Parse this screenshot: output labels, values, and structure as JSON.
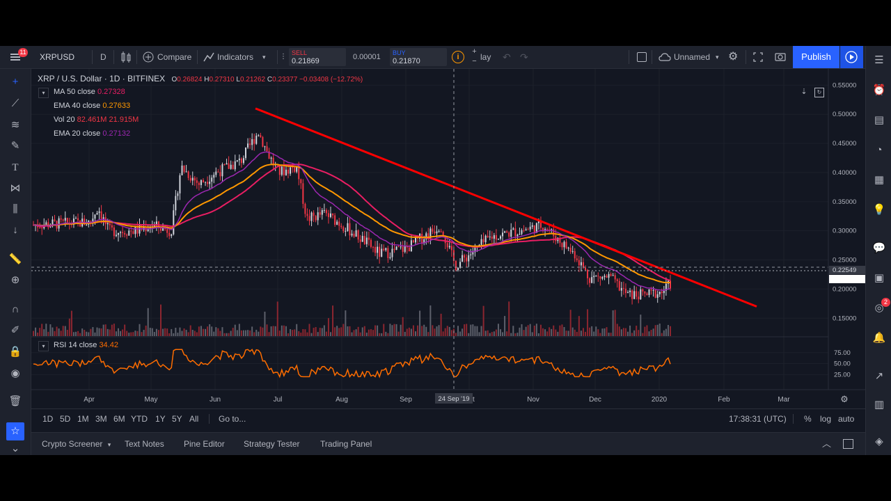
{
  "toolbar": {
    "notification_badge": "11",
    "symbol": "XRPUSD",
    "interval": "D",
    "compare_label": "Compare",
    "indicators_label": "Indicators",
    "sell_label": "SELL",
    "sell_price": "0.21869",
    "spread": "0.00001",
    "buy_label": "BUY",
    "buy_price": "0.21870",
    "replay_label": "lay",
    "layout_name": "Unnamed",
    "publish_label": "Publish"
  },
  "legend": {
    "title": "XRP / U.S. Dollar · 1D · BITFINEX",
    "o_label": "O",
    "o_value": "0.26824",
    "h_label": "H",
    "h_value": "0.27310",
    "l_label": "L",
    "l_value": "0.21262",
    "c_label": "C",
    "c_value": "0.23377 −0.03408 (−12.72%)",
    "indicators": [
      {
        "name": "MA 50 close",
        "value": "0.27328",
        "color": "#e91e63"
      },
      {
        "name": "EMA 40 close",
        "value": "0.27633",
        "color": "#ff9800"
      },
      {
        "name": "Vol 20",
        "value": "82.461M",
        "value2": "21.915M",
        "color": "#f23645"
      },
      {
        "name": "EMA 20 close",
        "value": "0.27132",
        "color": "#9c27b0"
      }
    ],
    "rsi_name": "RSI 14 close",
    "rsi_value": "34.42"
  },
  "colors": {
    "background": "#131722",
    "up": "#d1d4dc",
    "down": "#f23645",
    "trendline": "#ff0000",
    "rsi": "#ff6d00",
    "accent": "#2962ff"
  },
  "price_axis": {
    "ticks": [
      "0.55000",
      "0.50000",
      "0.45000",
      "0.40000",
      "0.35000",
      "0.30000",
      "0.25000",
      "0.20000",
      "0.15000"
    ],
    "current_price": "0.22549"
  },
  "rsi_axis": {
    "ticks": [
      "75.00",
      "50.00",
      "25.00"
    ]
  },
  "time_axis": {
    "ticks": [
      "Apr",
      "May",
      "Jun",
      "Jul",
      "Aug",
      "Sep",
      "Oct",
      "Nov",
      "Dec",
      "2020",
      "Feb",
      "Mar"
    ],
    "crosshair_label": "24 Sep '19"
  },
  "range_bar": {
    "ranges": [
      "1D",
      "5D",
      "1M",
      "3M",
      "6M",
      "YTD",
      "1Y",
      "5Y",
      "All"
    ],
    "goto_label": "Go to...",
    "clock": "17:38:31 (UTC)",
    "percent": "%",
    "log": "log",
    "auto": "auto"
  },
  "bottom_tabs": [
    "Crypto Screener",
    "Text Notes",
    "Pine Editor",
    "Strategy Tester",
    "Trading Panel"
  ],
  "right_badge": "2",
  "chart_data": {
    "type": "line",
    "instrument": "XRP / U.S. Dollar",
    "interval": "1D",
    "exchange": "BITFINEX",
    "x": [
      "Apr",
      "May",
      "Jun",
      "Jul",
      "Aug",
      "Sep",
      "Oct",
      "Nov",
      "Dec",
      "2020"
    ],
    "series": [
      {
        "name": "",
        "values": [
          0.31,
          0.31,
          0.4,
          0.38,
          0.31,
          0.26,
          0.25,
          0.3,
          0.22,
          0.21
        ]
      },
      {
        "name": "MA 50 close",
        "values": [
          0.31,
          0.3,
          0.34,
          0.41,
          0.37,
          0.3,
          0.27,
          0.28,
          0.26,
          0.21
        ]
      },
      {
        "name": "EMA 40 close",
        "values": [
          0.31,
          0.305,
          0.36,
          0.41,
          0.34,
          0.28,
          0.27,
          0.29,
          0.24,
          0.21
        ]
      },
      {
        "name": "EMA 20 close",
        "values": [
          0.31,
          0.31,
          0.37,
          0.4,
          0.33,
          0.27,
          0.265,
          0.29,
          0.23,
          0.205
        ]
      },
      {
        "name": "RSI 14 close",
        "values": [
          48,
          55,
          62,
          45,
          42,
          45,
          55,
          60,
          30,
          35
        ]
      }
    ],
    "trendline": {
      "start": [
        "Jun 20",
        0.51
      ],
      "end": [
        "Feb 15",
        0.17
      ]
    },
    "ylim": [
      0.13,
      0.56
    ],
    "rsi_ylim": [
      0,
      100
    ]
  }
}
